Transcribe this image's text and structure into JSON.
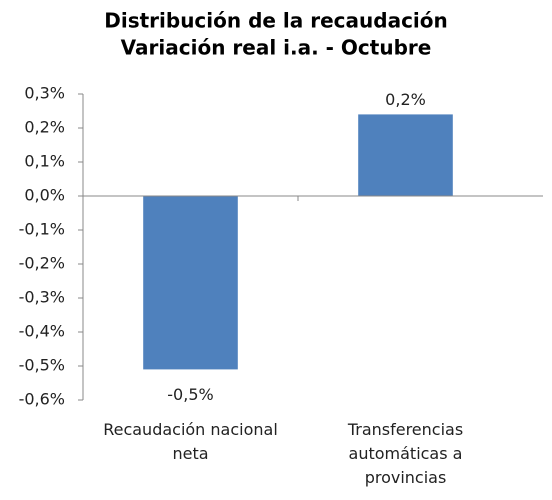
{
  "chart_data": {
    "type": "bar",
    "title": "Distribución de la recaudación",
    "subtitle": "Variación real i.a. - Octubre",
    "categories": [
      "Recaudación nacional neta",
      "Transferencias automáticas a provincias"
    ],
    "values": [
      -0.51,
      0.24
    ],
    "value_labels": [
      "-0,5%",
      "0,2%"
    ],
    "color": "#4f81bd",
    "ylim": [
      -0.6,
      0.3
    ],
    "yticks": [
      {
        "value": 0.3,
        "label": "0,3%"
      },
      {
        "value": 0.2,
        "label": "0,2%"
      },
      {
        "value": 0.1,
        "label": "0,1%"
      },
      {
        "value": 0.0,
        "label": "0,0%"
      },
      {
        "value": -0.1,
        "label": "-0,1%"
      },
      {
        "value": -0.2,
        "label": "-0,2%"
      },
      {
        "value": -0.3,
        "label": "-0,3%"
      },
      {
        "value": -0.4,
        "label": "-0,4%"
      },
      {
        "value": -0.5,
        "label": "-0,5%"
      },
      {
        "value": -0.6,
        "label": "-0,6%"
      }
    ],
    "grid": false
  }
}
